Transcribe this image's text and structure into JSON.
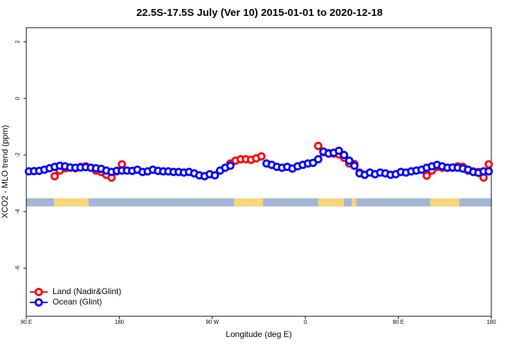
{
  "chart_data": {
    "type": "line",
    "title": "22.5S-17.5S July (Ver 10)   2015-01-01 to 2020-12-18",
    "x_label": "Longitude (deg E)",
    "y_label": "XCO2 - MLO trend (ppm)",
    "xlim": [
      90,
      540
    ],
    "ylim": [
      -7.7,
      2.5
    ],
    "xticks": [
      {
        "value": 90,
        "label": "90 E"
      },
      {
        "value": 180,
        "label": "180"
      },
      {
        "value": 270,
        "label": "90 W"
      },
      {
        "value": 360,
        "label": "0"
      },
      {
        "value": 450,
        "label": "90 E"
      },
      {
        "value": 540,
        "label": "180"
      }
    ],
    "yticks": [
      2,
      0,
      -2,
      -4,
      -6
    ],
    "legend": "bottom-left",
    "surface_band": {
      "ylim": [
        -3.53,
        -3.82
      ],
      "ocean_color": "#a3b6d6",
      "land_color": "#f5d77a",
      "land": [
        [
          116.8,
          150.3
        ],
        [
          291,
          319
        ],
        [
          372.6,
          397.4
        ],
        [
          404.8,
          409.5
        ],
        [
          481,
          509
        ]
      ]
    },
    "series": [
      {
        "name": "Land (Nadir&Glint)",
        "color": "#ff0000",
        "x": [
          117.5,
          122.5,
          127.5,
          132.5,
          137.5,
          142.5,
          147.5,
          152.5,
          157.5,
          162.5,
          167.5,
          172.5,
          177.5,
          182.5,
          187.5,
          287.5,
          292.5,
          297.5,
          302.5,
          307.5,
          312.5,
          317.5,
          322.5,
          372.5,
          377.5,
          382.5,
          387.5,
          392.5,
          397.5,
          402.5,
          407.5,
          412.5,
          417.5,
          477.5,
          482.5,
          487.5,
          492.5,
          497.5,
          502.5,
          507.5,
          512.5,
          517.5,
          522.5,
          527.5,
          532.5,
          537.5
        ],
        "values": [
          -2.75,
          -2.55,
          -2.47,
          -2.45,
          -2.47,
          -2.42,
          -2.4,
          -2.45,
          -2.55,
          -2.6,
          -2.7,
          -2.8,
          -2.58,
          -2.33,
          null,
          -2.3,
          -2.2,
          -2.15,
          -2.15,
          -2.17,
          -2.12,
          -2.05,
          null,
          -1.68,
          -1.9,
          -1.93,
          -1.95,
          -1.98,
          -2.1,
          -2.3,
          -2.32,
          -2.62,
          null,
          -2.73,
          -2.55,
          -2.42,
          -2.45,
          -2.45,
          -2.45,
          -2.4,
          -2.42,
          -2.55,
          -2.58,
          -2.6,
          -2.8,
          -2.33
        ]
      },
      {
        "name": "Ocean (Glint)",
        "color": "#0000ff",
        "x": [
          92.5,
          97.5,
          102.5,
          107.5,
          112.5,
          117.5,
          122.5,
          127.5,
          132.5,
          137.5,
          142.5,
          147.5,
          152.5,
          157.5,
          162.5,
          167.5,
          172.5,
          177.5,
          182.5,
          187.5,
          192.5,
          197.5,
          202.5,
          207.5,
          212.5,
          217.5,
          222.5,
          227.5,
          232.5,
          237.5,
          242.5,
          247.5,
          252.5,
          257.5,
          262.5,
          267.5,
          272.5,
          277.5,
          282.5,
          287.5,
          292.5,
          297.5,
          302.5,
          307.5,
          312.5,
          317.5,
          322.5,
          327.5,
          332.5,
          337.5,
          342.5,
          347.5,
          352.5,
          357.5,
          362.5,
          367.5,
          372.5,
          377.5,
          382.5,
          387.5,
          392.5,
          397.5,
          402.5,
          407.5,
          412.5,
          417.5,
          422.5,
          427.5,
          432.5,
          437.5,
          442.5,
          447.5,
          452.5,
          457.5,
          462.5,
          467.5,
          472.5,
          477.5,
          482.5,
          487.5,
          492.5,
          497.5,
          502.5,
          507.5,
          512.5,
          517.5,
          522.5,
          527.5,
          532.5,
          537.5
        ],
        "values": [
          -2.58,
          -2.57,
          -2.56,
          -2.52,
          -2.47,
          -2.42,
          -2.38,
          -2.4,
          -2.44,
          -2.45,
          -2.44,
          -2.43,
          -2.45,
          -2.47,
          -2.49,
          -2.55,
          -2.6,
          -2.56,
          -2.55,
          -2.55,
          -2.56,
          -2.52,
          -2.6,
          -2.58,
          -2.52,
          -2.56,
          -2.58,
          -2.58,
          -2.6,
          -2.6,
          -2.62,
          -2.6,
          -2.65,
          -2.72,
          -2.75,
          -2.68,
          -2.72,
          -2.55,
          -2.45,
          -2.38,
          null,
          null,
          null,
          null,
          null,
          null,
          -2.3,
          -2.35,
          -2.42,
          -2.45,
          -2.42,
          -2.48,
          -2.4,
          -2.35,
          -2.3,
          -2.28,
          -2.15,
          -1.88,
          -1.95,
          -1.92,
          -1.85,
          -2.0,
          -2.2,
          -2.38,
          -2.65,
          -2.7,
          -2.62,
          -2.68,
          -2.62,
          -2.65,
          -2.7,
          -2.68,
          -2.6,
          -2.62,
          -2.58,
          -2.55,
          -2.52,
          -2.45,
          -2.4,
          -2.35,
          -2.4,
          -2.45,
          -2.44,
          -2.45,
          -2.48,
          -2.52,
          -2.6,
          -2.63,
          -2.58,
          -2.58
        ]
      }
    ]
  }
}
